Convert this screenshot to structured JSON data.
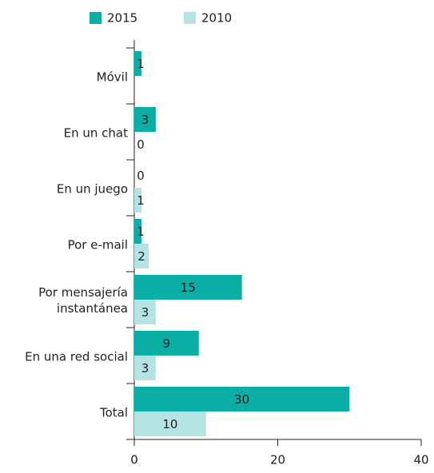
{
  "chart_data": {
    "type": "hbar",
    "categories": [
      "Móvil",
      "En un chat",
      "En un juego",
      "Por e-mail",
      "Por mensajería instantánea",
      "En una red social",
      "Total"
    ],
    "series": [
      {
        "name": "2015",
        "color": "#0aaea5",
        "values": [
          1,
          3,
          0,
          1,
          15,
          9,
          30
        ]
      },
      {
        "name": "2010",
        "color": "#b5e3e3",
        "values": [
          null,
          0,
          1,
          2,
          3,
          3,
          10
        ]
      }
    ],
    "xlim": [
      0,
      40
    ],
    "xticks": [
      0,
      20,
      40
    ],
    "legend": "top"
  }
}
